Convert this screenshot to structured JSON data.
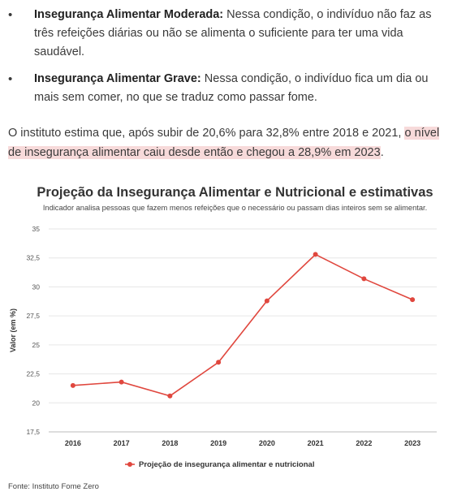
{
  "bullets": [
    {
      "title": "Insegurança Alimentar Moderada:",
      "text": " Nessa condição, o indivíduo não faz as três refeições diárias ou não se alimenta o suficiente para ter uma vida saudável."
    },
    {
      "title": "Insegurança Alimentar Grave:",
      "text": " Nessa condição, o indivíduo fica um dia ou mais sem comer, no que se traduz como passar fome."
    }
  ],
  "paragraph": {
    "text_before": "O instituto estima que, após subir de 20,6% para 32,8% entre 2018 e 2021, ",
    "highlighted": "o nível de insegurança alimentar caiu desde então e chegou a 28,9% em 2023",
    "text_after": "."
  },
  "colors": {
    "series": "#e0473e",
    "highlight": "#f7dada",
    "grid": "#e6e6e6"
  },
  "chart_data": {
    "type": "line",
    "title": "Projeção da Insegurança Alimentar e Nutricional e estimativas",
    "subtitle": "Indicador analisa pessoas que fazem menos refeições que o necessário ou passam dias inteiros sem se alimentar.",
    "xlabel": "",
    "ylabel": "Valor (em %)",
    "x": [
      "2016",
      "2017",
      "2018",
      "2019",
      "2020",
      "2021",
      "2022",
      "2023"
    ],
    "series": [
      {
        "name": "Projeção de insegurança alimentar e nutricional",
        "values": [
          21.5,
          21.8,
          20.6,
          23.5,
          28.8,
          32.8,
          30.7,
          28.9
        ]
      }
    ],
    "ylim": [
      17.5,
      35
    ],
    "yticks": [
      17.5,
      20,
      22.5,
      25,
      27.5,
      30,
      32.5,
      35
    ],
    "ytick_labels": [
      "17,5",
      "20",
      "22,5",
      "25",
      "27,5",
      "30",
      "32,5",
      "35"
    ],
    "grid": true,
    "legend": "bottom-center"
  },
  "source": "Fonte: Instituto Fome Zero"
}
